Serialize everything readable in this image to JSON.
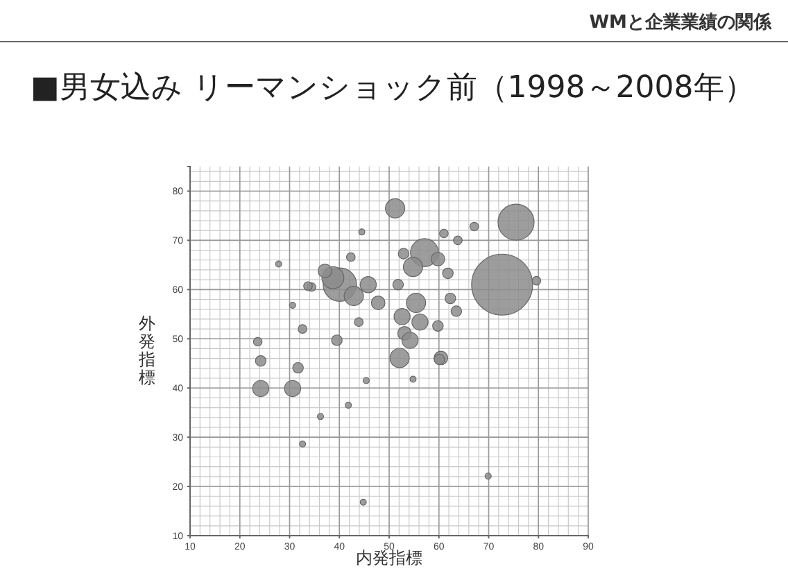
{
  "chart_data": {
    "type": "bubble",
    "title": "■男女込み リーマンショック前（1998～2008年）",
    "xlabel": "内発指標",
    "ylabel": "外発指標",
    "annotations": [
      "WMと企業業績の関係"
    ],
    "xlim": [
      10,
      90
    ],
    "ylim": [
      10,
      85
    ],
    "xticks": [
      10,
      20,
      30,
      40,
      50,
      60,
      70,
      80,
      90
    ],
    "yticks": [
      10,
      20,
      30,
      40,
      50,
      60,
      70,
      80
    ],
    "grid": true,
    "series": [
      {
        "color": "#8c8c8c",
        "x": [
          72.7,
          75.5,
          40.1,
          51.2,
          57.1,
          54.8,
          38.7,
          42.9,
          37.1,
          45.8,
          47.8,
          55.4,
          52.6,
          56.2,
          53.1,
          54.2,
          52.1,
          60.4,
          59.8,
          62.3,
          52.9,
          51.8,
          59.8,
          61.8,
          63.5,
          24.2,
          30.6,
          24.2,
          39.5,
          31.7,
          43.9,
          34.4,
          60.1,
          36.2,
          54.8,
          69.9,
          44.8,
          32.6,
          41.8,
          45.4,
          79.6,
          67.1,
          63.8,
          61.0,
          42.3,
          27.8,
          44.5,
          33.7,
          30.6,
          32.6,
          23.6
        ],
        "values": [
          61.0,
          73.7,
          61.0,
          76.5,
          67.5,
          64.6,
          62.4,
          58.7,
          63.8,
          61.0,
          57.3,
          57.3,
          54.5,
          53.4,
          51.1,
          49.7,
          46.1,
          46.1,
          52.6,
          58.2,
          67.3,
          61.0,
          66.2,
          63.3,
          55.6,
          39.9,
          39.9,
          45.5,
          49.7,
          44.1,
          53.4,
          60.5,
          45.8,
          34.2,
          41.8,
          22.1,
          16.8,
          28.6,
          36.5,
          41.5,
          61.8,
          72.8,
          70.0,
          71.4,
          66.6,
          65.2,
          71.7,
          60.7,
          56.8,
          52.0,
          49.4
        ],
        "sizes": [
          1,
          0.35,
          0.3,
          0.1,
          0.21,
          0.1,
          0.13,
          0.1,
          0.05,
          0.07,
          0.05,
          0.1,
          0.07,
          0.07,
          0.05,
          0.07,
          0.1,
          0.05,
          0.03,
          0.03,
          0.03,
          0.03,
          0.05,
          0.03,
          0.03,
          0.07,
          0.07,
          0.03,
          0.03,
          0.03,
          0.02,
          0.02,
          0.03,
          0.01,
          0.01,
          0.01,
          0.01,
          0.01,
          0.01,
          0.01,
          0.02,
          0.02,
          0.02,
          0.02,
          0.02,
          0.01,
          0.01,
          0.02,
          0.01,
          0.02,
          0.02
        ]
      }
    ]
  }
}
